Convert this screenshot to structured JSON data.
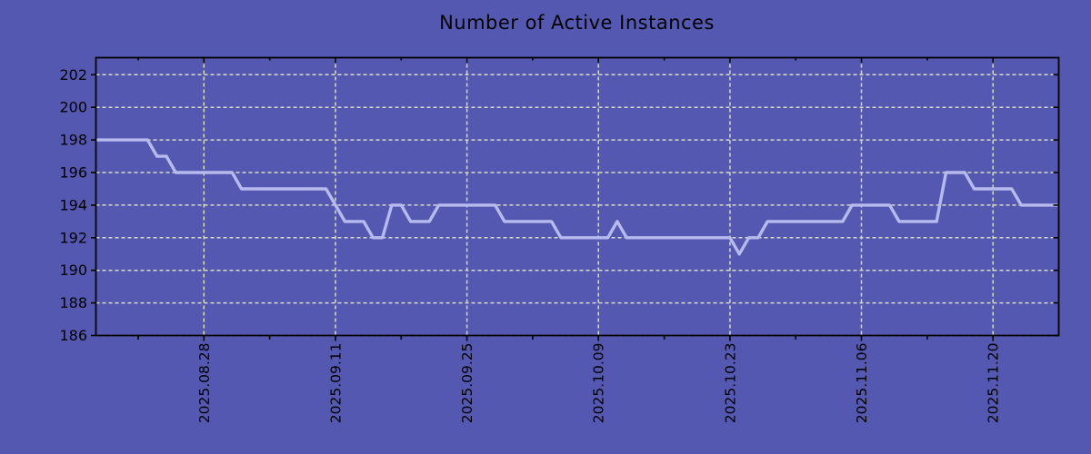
{
  "figure": {
    "title": "Number of Active Instances",
    "colors": {
      "background": "#5558b1",
      "line": "#b6baee",
      "grid": "#d8dcc6",
      "frame": "#000000",
      "text": "#000000"
    }
  },
  "chart_data": {
    "type": "line",
    "title": "Number of Active Instances",
    "x_axis": {
      "major_ticks": [
        {
          "date": "2025-08-28",
          "label": "2025.08.28"
        },
        {
          "date": "2025-09-11",
          "label": "2025.09.11"
        },
        {
          "date": "2025-09-25",
          "label": "2025.09.25"
        },
        {
          "date": "2025-10-09",
          "label": "2025.10.09"
        },
        {
          "date": "2025-10-23",
          "label": "2025.10.23"
        },
        {
          "date": "2025-11-06",
          "label": "2025.11.06"
        },
        {
          "date": "2025-11-20",
          "label": "2025.11.20"
        }
      ],
      "minor_tick_dates": [
        "2025-08-21",
        "2025-09-04",
        "2025-09-18",
        "2025-10-02",
        "2025-10-16",
        "2025-10-30",
        "2025-11-13"
      ],
      "gridlines_at_major_ticks": true
    },
    "y_axis": {
      "ticks": [
        186,
        188,
        190,
        192,
        194,
        196,
        198,
        200,
        202
      ],
      "lim": [
        186,
        203.05
      ],
      "gridlines": true
    },
    "series": [
      {
        "name": "Active Instances",
        "start_date": "2025-08-16",
        "interval_days": 1,
        "values": [
          198,
          198,
          198,
          198,
          198,
          198,
          198,
          197,
          197,
          196,
          196,
          196,
          196,
          196,
          196,
          196,
          195,
          195,
          195,
          195,
          195,
          195,
          195,
          195,
          195,
          195,
          194,
          193,
          193,
          193,
          192,
          192,
          194,
          194,
          193,
          193,
          193,
          194,
          194,
          194,
          194,
          194,
          194,
          194,
          193,
          193,
          193,
          193,
          193,
          193,
          192,
          192,
          192,
          192,
          192,
          192,
          193,
          192,
          192,
          192,
          192,
          192,
          192,
          192,
          192,
          192,
          192,
          192,
          192,
          191,
          192,
          192,
          193,
          193,
          193,
          193,
          193,
          193,
          193,
          193,
          193,
          194,
          194,
          194,
          194,
          194,
          193,
          193,
          193,
          193,
          193,
          196,
          196,
          196,
          195,
          195,
          195,
          195,
          195,
          194,
          194,
          194,
          194,
          194
        ]
      }
    ],
    "xlim_day_offsets": [
      0.5,
      103
    ],
    "legend": null
  }
}
